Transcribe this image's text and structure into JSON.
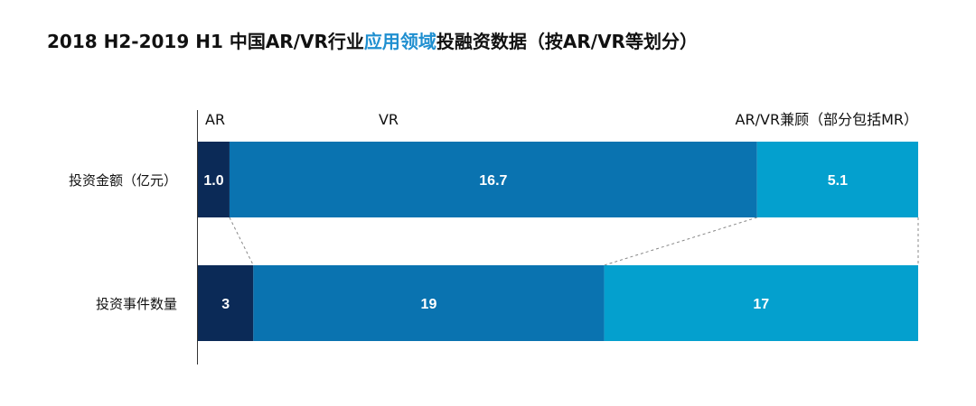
{
  "title": {
    "prefix": "2018 H2-2019 H1 中国AR/VR行业",
    "highlight": "应用领域",
    "suffix": "投融资数据（按AR/VR等划分）"
  },
  "colors": {
    "AR": "#0b2a57",
    "VR": "#0a73b0",
    "AR/VR兼顾": "#04a0ce",
    "highlight": "#1f8fd0"
  },
  "chart_data": {
    "type": "bar",
    "orientation": "horizontal",
    "stacking": "percent",
    "categories": [
      "投资金额（亿元）",
      "投资事件数量"
    ],
    "series": [
      {
        "name": "AR",
        "values": [
          1.0,
          3
        ]
      },
      {
        "name": "VR",
        "values": [
          16.7,
          19
        ]
      },
      {
        "name": "AR/VR兼顾",
        "legend_label": "AR/VR兼顾（部分包括MR）",
        "values": [
          5.1,
          17
        ]
      }
    ],
    "value_labels": [
      [
        "1.0",
        "3"
      ],
      [
        "16.7",
        "19"
      ],
      [
        "5.1",
        "17"
      ]
    ],
    "legend_placement": "top",
    "grid": false
  }
}
